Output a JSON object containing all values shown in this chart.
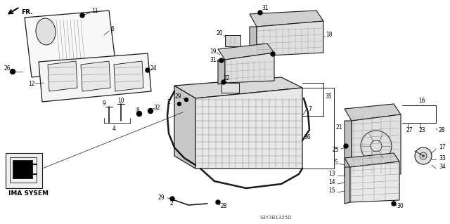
{
  "background_color": "#ffffff",
  "line_color": "#1a1a1a",
  "text_color": "#000000",
  "fig_width": 6.4,
  "fig_height": 3.19,
  "dpi": 100,
  "diagram_code": "S3Y3B1325D",
  "label_text": "IMA SYSEM",
  "arrow_label": "FR."
}
